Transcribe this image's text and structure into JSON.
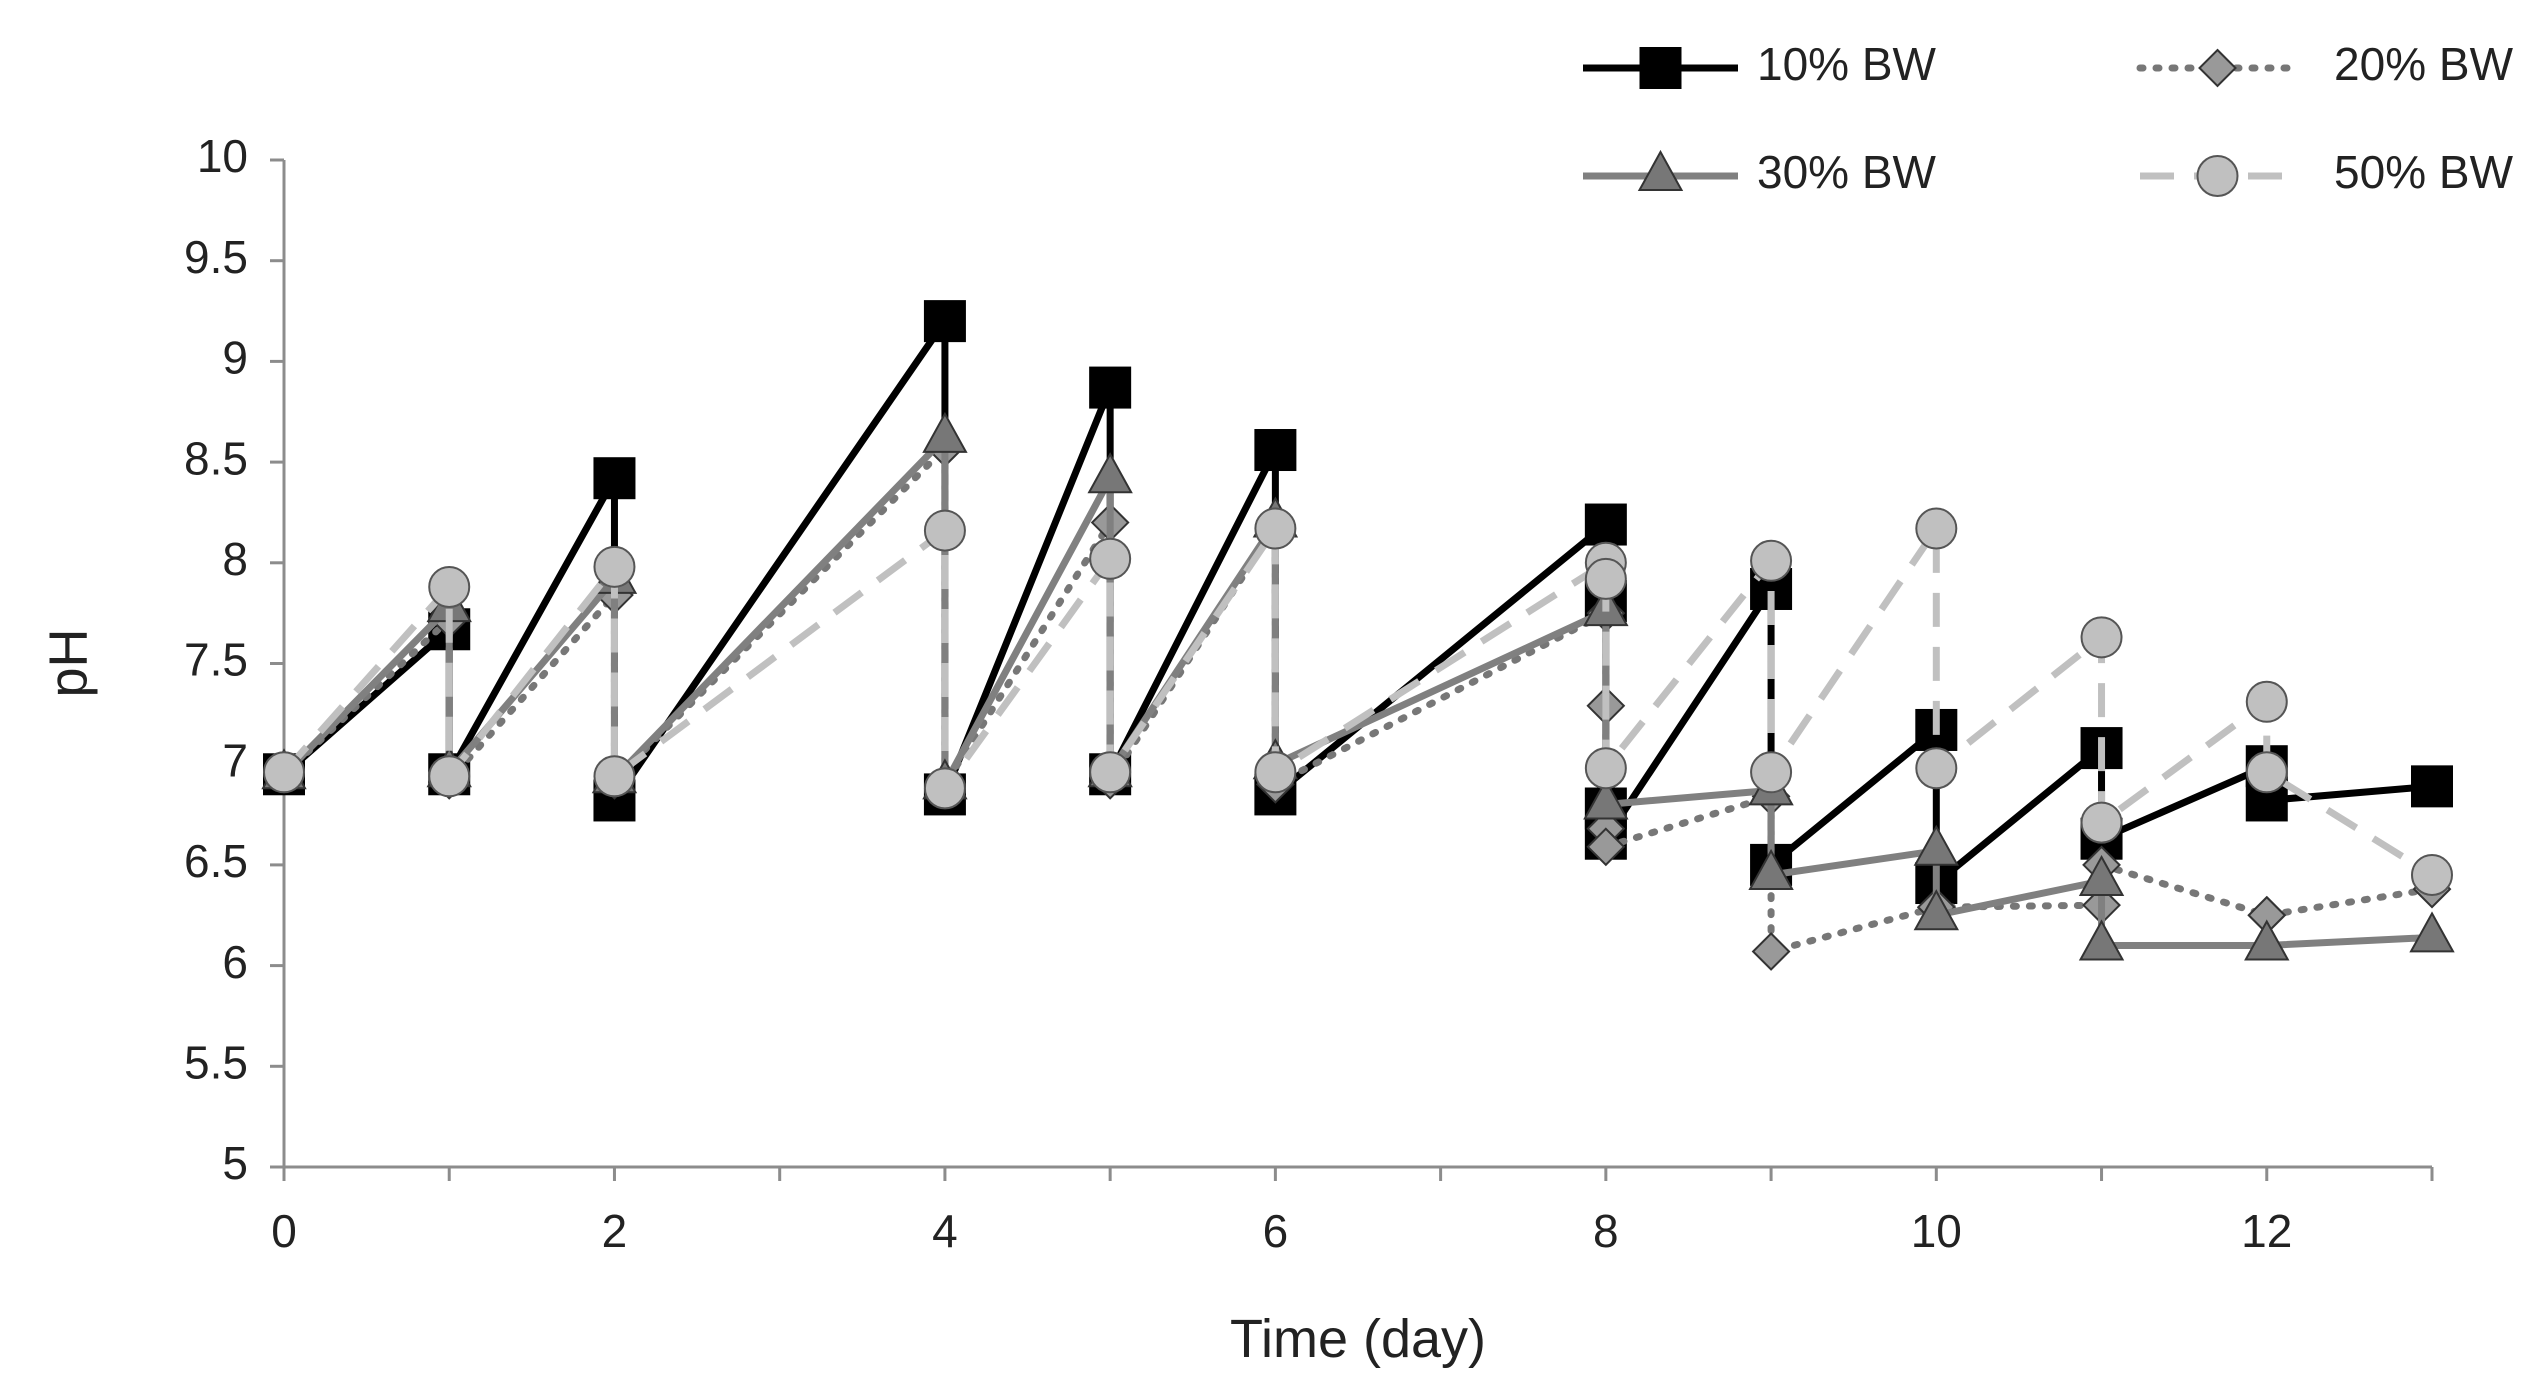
{
  "chart_data": {
    "type": "line",
    "title": "",
    "xlabel": "Time (day)",
    "ylabel": "pH",
    "xlim": [
      0,
      13
    ],
    "ylim": [
      5,
      10
    ],
    "xticks": [
      0,
      2,
      4,
      6,
      8,
      10,
      12
    ],
    "xtick_labels": [
      "0",
      "2",
      "4",
      "6",
      "8",
      "10",
      "12"
    ],
    "yticks": [
      5,
      5.5,
      6,
      6.5,
      7,
      7.5,
      8,
      8.5,
      9,
      9.5,
      10
    ],
    "ytick_labels": [
      "5",
      "5.5",
      "6",
      "6.5",
      "7",
      "7.5",
      "8",
      "8.5",
      "9",
      "9.5",
      "10"
    ],
    "grid": false,
    "legend_position": "top-right",
    "series": [
      {
        "name": "10% BW",
        "color": "#000000",
        "line_style": "solid",
        "marker": "square",
        "marker_fill": "#000000",
        "x": [
          0,
          1,
          1,
          2,
          2,
          4,
          4,
          5,
          5,
          6,
          6,
          8,
          8,
          8,
          8,
          9,
          9,
          10,
          10,
          11,
          11,
          12,
          12,
          13
        ],
        "y": [
          6.95,
          7.67,
          6.95,
          8.42,
          6.82,
          9.2,
          6.85,
          8.87,
          6.95,
          8.56,
          6.85,
          8.19,
          7.81,
          6.78,
          6.63,
          7.87,
          6.5,
          7.17,
          6.41,
          7.08,
          6.63,
          6.99,
          6.82,
          6.89
        ]
      },
      {
        "name": "20% BW",
        "color": "#777777",
        "line_style": "dotted",
        "marker": "diamond",
        "marker_fill": "#999999",
        "x": [
          0,
          1,
          1,
          2,
          2,
          4,
          4,
          5,
          5,
          6,
          6,
          8,
          8,
          8,
          8,
          9,
          9,
          10,
          10,
          11,
          11,
          12,
          12,
          13
        ],
        "y": [
          6.95,
          7.72,
          6.92,
          7.84,
          6.92,
          8.57,
          6.9,
          8.2,
          6.92,
          8.18,
          6.9,
          7.75,
          7.29,
          6.68,
          6.59,
          6.84,
          6.07,
          6.29,
          6.29,
          6.3,
          6.5,
          6.25,
          6.25,
          6.38
        ]
      },
      {
        "name": "30% BW",
        "color": "#808080",
        "line_style": "solid",
        "marker": "triangle",
        "marker_fill": "#777777",
        "x": [
          0,
          1,
          1,
          2,
          2,
          4,
          4,
          5,
          5,
          6,
          6,
          8,
          8,
          9,
          9,
          10,
          10,
          11,
          11,
          12,
          13
        ],
        "y": [
          6.95,
          7.78,
          6.96,
          7.92,
          6.93,
          8.62,
          6.9,
          8.42,
          6.96,
          8.2,
          7.0,
          7.76,
          6.8,
          6.87,
          6.45,
          6.57,
          6.25,
          6.42,
          6.1,
          6.1,
          6.14
        ]
      },
      {
        "name": "50% BW",
        "color": "#c0c0c0",
        "line_style": "dashed",
        "marker": "circle",
        "marker_fill": "#c0c0c0",
        "x": [
          0,
          1,
          1,
          2,
          2,
          4,
          4,
          5,
          5,
          6,
          6,
          8,
          8,
          8,
          9,
          9,
          10,
          10,
          11,
          11,
          12,
          12,
          13
        ],
        "y": [
          6.96,
          7.88,
          6.94,
          7.98,
          6.94,
          8.16,
          6.88,
          8.02,
          6.96,
          8.17,
          6.96,
          8.0,
          7.92,
          6.98,
          8.01,
          6.96,
          8.17,
          6.98,
          7.63,
          6.71,
          7.31,
          6.96,
          6.45
        ]
      }
    ]
  }
}
